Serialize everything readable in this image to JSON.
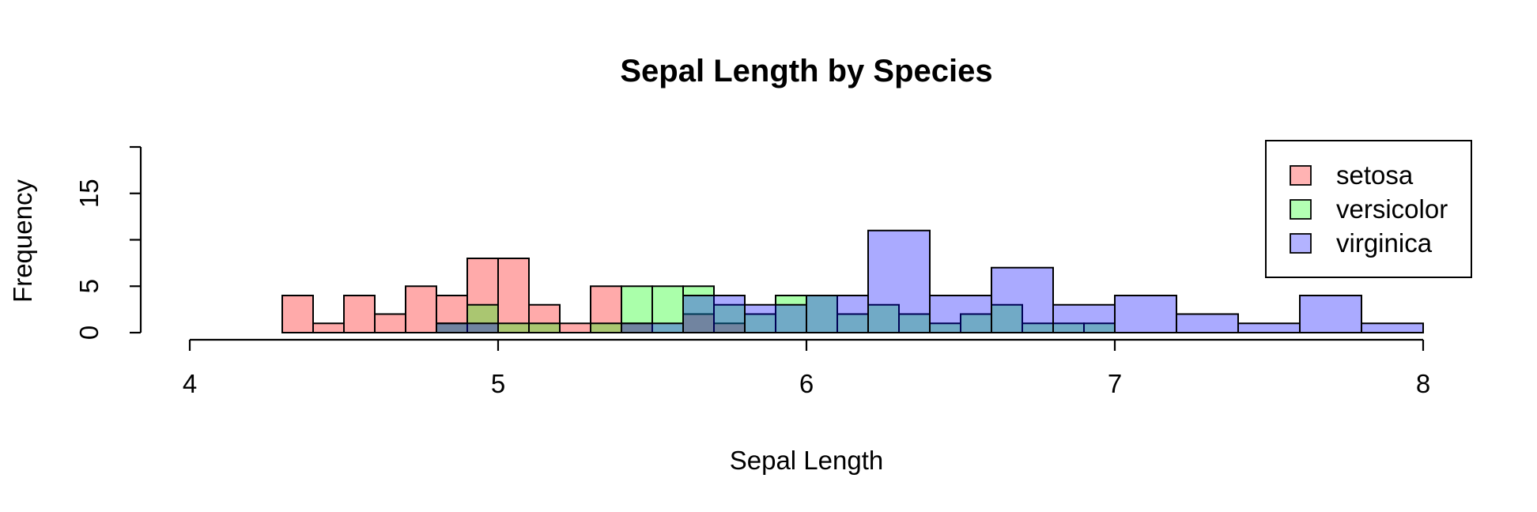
{
  "chart_data": {
    "type": "bar",
    "title": "Sepal Length by Species",
    "xlabel": "Sepal Length",
    "ylabel": "Frequency",
    "xlim": [
      4,
      8
    ],
    "ylim": [
      0,
      20
    ],
    "x_ticks": [
      "4",
      "5",
      "6",
      "7",
      "8"
    ],
    "y_ticks": [
      "0",
      "5",
      "15"
    ],
    "legend_position": "top-right",
    "series": [
      {
        "name": "setosa",
        "color": "#ff000055",
        "legend_color": "#ffb3b3",
        "bins": [
          {
            "start": 4.3,
            "end": 4.4,
            "count": 4
          },
          {
            "start": 4.4,
            "end": 4.5,
            "count": 1
          },
          {
            "start": 4.5,
            "end": 4.6,
            "count": 4
          },
          {
            "start": 4.6,
            "end": 4.7,
            "count": 2
          },
          {
            "start": 4.7,
            "end": 4.8,
            "count": 5
          },
          {
            "start": 4.8,
            "end": 4.9,
            "count": 4
          },
          {
            "start": 4.9,
            "end": 5.0,
            "count": 8
          },
          {
            "start": 5.0,
            "end": 5.1,
            "count": 8
          },
          {
            "start": 5.1,
            "end": 5.2,
            "count": 3
          },
          {
            "start": 5.2,
            "end": 5.3,
            "count": 1
          },
          {
            "start": 5.3,
            "end": 5.4,
            "count": 5
          },
          {
            "start": 5.4,
            "end": 5.5,
            "count": 1
          },
          {
            "start": 5.6,
            "end": 5.7,
            "count": 2
          },
          {
            "start": 5.7,
            "end": 5.8,
            "count": 1
          }
        ]
      },
      {
        "name": "versicolor",
        "color": "#00ff0055",
        "legend_color": "#b3ffb3",
        "bins": [
          {
            "start": 4.8,
            "end": 4.9,
            "count": 1
          },
          {
            "start": 4.9,
            "end": 5.0,
            "count": 3
          },
          {
            "start": 5.0,
            "end": 5.1,
            "count": 1
          },
          {
            "start": 5.1,
            "end": 5.2,
            "count": 1
          },
          {
            "start": 5.3,
            "end": 5.4,
            "count": 1
          },
          {
            "start": 5.4,
            "end": 5.5,
            "count": 5
          },
          {
            "start": 5.5,
            "end": 5.6,
            "count": 5
          },
          {
            "start": 5.6,
            "end": 5.7,
            "count": 5
          },
          {
            "start": 5.7,
            "end": 5.8,
            "count": 3
          },
          {
            "start": 5.8,
            "end": 5.9,
            "count": 2
          },
          {
            "start": 5.9,
            "end": 6.0,
            "count": 4
          },
          {
            "start": 6.0,
            "end": 6.1,
            "count": 4
          },
          {
            "start": 6.1,
            "end": 6.2,
            "count": 2
          },
          {
            "start": 6.2,
            "end": 6.3,
            "count": 3
          },
          {
            "start": 6.3,
            "end": 6.4,
            "count": 2
          },
          {
            "start": 6.4,
            "end": 6.5,
            "count": 1
          },
          {
            "start": 6.5,
            "end": 6.6,
            "count": 2
          },
          {
            "start": 6.6,
            "end": 6.7,
            "count": 3
          },
          {
            "start": 6.7,
            "end": 6.8,
            "count": 1
          },
          {
            "start": 6.8,
            "end": 6.9,
            "count": 1
          },
          {
            "start": 6.9,
            "end": 7.0,
            "count": 1
          }
        ]
      },
      {
        "name": "virginica",
        "color": "#0000ff55",
        "legend_color": "#b3b3ff",
        "bins": [
          {
            "start": 4.8,
            "end": 5.0,
            "count": 1
          },
          {
            "start": 5.0,
            "end": 5.2,
            "count": 0
          },
          {
            "start": 5.2,
            "end": 5.4,
            "count": 0
          },
          {
            "start": 5.4,
            "end": 5.6,
            "count": 1
          },
          {
            "start": 5.6,
            "end": 5.8,
            "count": 4
          },
          {
            "start": 5.8,
            "end": 6.0,
            "count": 3
          },
          {
            "start": 6.0,
            "end": 6.2,
            "count": 4
          },
          {
            "start": 6.2,
            "end": 6.4,
            "count": 11
          },
          {
            "start": 6.4,
            "end": 6.6,
            "count": 4
          },
          {
            "start": 6.6,
            "end": 6.8,
            "count": 7
          },
          {
            "start": 6.8,
            "end": 7.0,
            "count": 3
          },
          {
            "start": 7.0,
            "end": 7.2,
            "count": 4
          },
          {
            "start": 7.2,
            "end": 7.4,
            "count": 2
          },
          {
            "start": 7.4,
            "end": 7.6,
            "count": 1
          },
          {
            "start": 7.6,
            "end": 7.8,
            "count": 4
          },
          {
            "start": 7.8,
            "end": 8.0,
            "count": 1
          }
        ]
      }
    ]
  }
}
